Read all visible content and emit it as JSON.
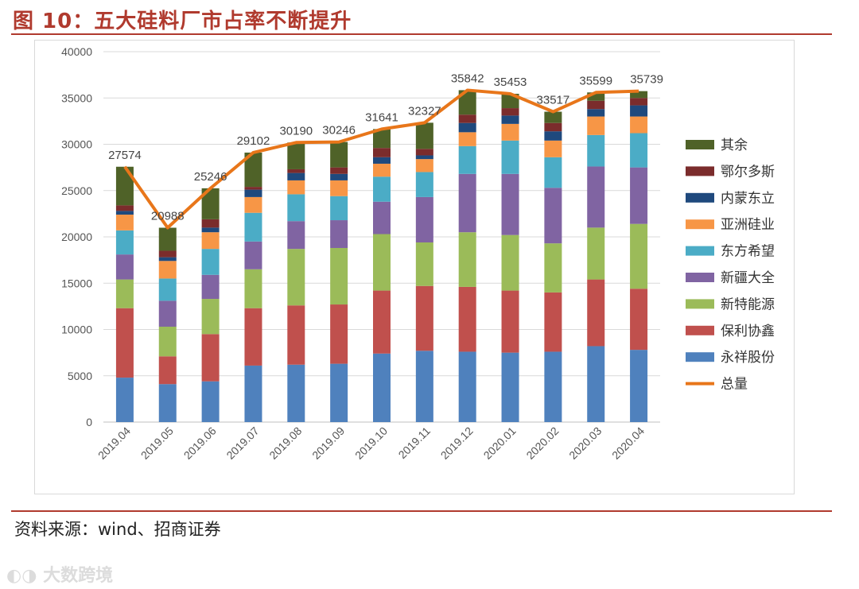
{
  "header": {
    "title": "图 10：五大硅料厂市占率不断提升"
  },
  "footer": {
    "source": "资料来源：wind、招商证券",
    "watermark": "大数跨境"
  },
  "chart_data": {
    "type": "bar",
    "stacked": true,
    "title": "",
    "xlabel": "",
    "ylabel": "",
    "ylim": [
      0,
      40000
    ],
    "yticks": [
      0,
      5000,
      10000,
      15000,
      20000,
      25000,
      30000,
      35000,
      40000
    ],
    "categories": [
      "2019.04",
      "2019.05",
      "2019.06",
      "2019.07",
      "2019.08",
      "2019.09",
      "2019.10",
      "2019.11",
      "2019.12",
      "2020.01",
      "2020.02",
      "2020.03",
      "2020.04"
    ],
    "series": [
      {
        "name": "永祥股份",
        "color": "#4f81bd",
        "values": [
          4800,
          4100,
          4400,
          6100,
          6200,
          6300,
          7400,
          7700,
          7600,
          7500,
          7600,
          8200,
          7800
        ]
      },
      {
        "name": "保利协鑫",
        "color": "#c0504d",
        "values": [
          7500,
          3000,
          5100,
          6200,
          6400,
          6400,
          6800,
          7000,
          7000,
          6700,
          6400,
          7200,
          6600
        ]
      },
      {
        "name": "新特能源",
        "color": "#9bbb59",
        "values": [
          3100,
          3200,
          3800,
          4200,
          6100,
          6100,
          6100,
          4700,
          5900,
          6000,
          5300,
          5600,
          7000
        ]
      },
      {
        "name": "新疆大全",
        "color": "#8064a2",
        "values": [
          2700,
          2800,
          2600,
          3000,
          3000,
          3000,
          3500,
          4900,
          6300,
          6600,
          6000,
          6600,
          6100
        ]
      },
      {
        "name": "东方希望",
        "color": "#4bacc6",
        "values": [
          2600,
          2400,
          2800,
          3100,
          2900,
          2600,
          2700,
          2700,
          3000,
          3600,
          3300,
          3400,
          3700
        ]
      },
      {
        "name": "亚洲硅业",
        "color": "#f79646",
        "values": [
          1700,
          1900,
          1800,
          1700,
          1500,
          1700,
          1400,
          1400,
          1500,
          1800,
          1800,
          2000,
          1800
        ]
      },
      {
        "name": "内蒙东立",
        "color": "#1f497d",
        "values": [
          400,
          400,
          500,
          800,
          800,
          700,
          700,
          400,
          1000,
          900,
          1000,
          800,
          1200
        ]
      },
      {
        "name": "鄂尔多斯",
        "color": "#7b2c2c",
        "values": [
          600,
          700,
          900,
          300,
          400,
          700,
          1000,
          700,
          900,
          800,
          900,
          900,
          800
        ]
      },
      {
        "name": "其余",
        "color": "#4f6228",
        "values": [
          4174,
          2488,
          3346,
          3702,
          2890,
          2746,
          2041,
          2827,
          2642,
          1553,
          1217,
          899,
          739
        ]
      }
    ],
    "total": {
      "name": "总量",
      "color": "#e8761a",
      "values": [
        27574,
        20988,
        25246,
        29102,
        30190,
        30246,
        31641,
        32327,
        35842,
        35453,
        33517,
        35599,
        35739
      ]
    },
    "legend_position": "right",
    "grid": "horizontal"
  }
}
